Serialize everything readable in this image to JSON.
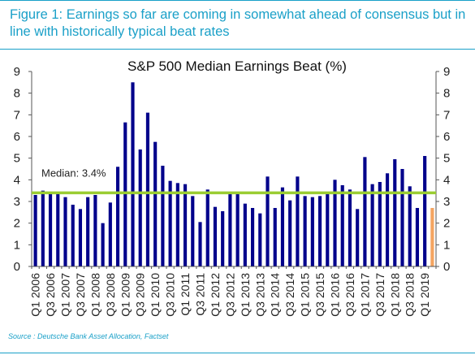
{
  "figure": {
    "caption": "Figure 1: Earnings so far are coming in somewhat ahead of consensus but in line with historically typical beat rates",
    "source": "Source : Deutsche Bank Asset Allocation, Factset"
  },
  "chart_data": {
    "type": "bar",
    "title": "S&P 500 Median Earnings Beat (%)",
    "xlabel": "",
    "ylabel": "",
    "ylim": [
      0,
      9
    ],
    "yticks": [
      0,
      1,
      2,
      3,
      4,
      5,
      6,
      7,
      8,
      9
    ],
    "categories": [
      "Q1 2006",
      "Q2 2006",
      "Q3 2006",
      "Q4 2006",
      "Q1 2007",
      "Q2 2007",
      "Q3 2007",
      "Q4 2007",
      "Q1 2008",
      "Q2 2008",
      "Q3 2008",
      "Q4 2008",
      "Q1 2009",
      "Q2 2009",
      "Q3 2009",
      "Q4 2009",
      "Q1 2010",
      "Q2 2010",
      "Q3 2010",
      "Q4 2010",
      "Q1 2011",
      "Q2 2011",
      "Q3 2011",
      "Q4 2011",
      "Q1 2012",
      "Q2 2012",
      "Q3 2012",
      "Q4 2012",
      "Q1 2013",
      "Q2 2013",
      "Q3 2013",
      "Q4 2013",
      "Q1 2014",
      "Q2 2014",
      "Q3 2014",
      "Q4 2014",
      "Q1 2015",
      "Q2 2015",
      "Q3 2015",
      "Q4 2015",
      "Q1 2016",
      "Q2 2016",
      "Q3 2016",
      "Q4 2016",
      "Q1 2017",
      "Q2 2017",
      "Q3 2017",
      "Q4 2017",
      "Q1 2018",
      "Q2 2018",
      "Q3 2018",
      "Q4 2018",
      "Q1 2019",
      "Q2 2019"
    ],
    "x_tick_labels": [
      "Q1 2006",
      "Q3 2006",
      "Q1 2007",
      "Q3 2007",
      "Q1 2008",
      "Q3 2008",
      "Q1 2009",
      "Q3 2009",
      "Q1 2010",
      "Q3 2010",
      "Q1 2011",
      "Q3 2011",
      "Q1 2012",
      "Q3 2012",
      "Q1 2013",
      "Q3 2013",
      "Q1 2014",
      "Q3 2014",
      "Q1 2015",
      "Q3 2015",
      "Q1 2016",
      "Q3 2016",
      "Q1 2017",
      "Q3 2017",
      "Q1 2018",
      "Q3 2018",
      "Q1 2019"
    ],
    "values": [
      3.3,
      3.5,
      3.45,
      3.4,
      3.2,
      2.85,
      2.65,
      3.2,
      3.3,
      2.0,
      2.95,
      4.6,
      6.65,
      8.5,
      5.4,
      7.1,
      5.75,
      4.65,
      3.95,
      3.85,
      3.8,
      3.25,
      2.05,
      3.55,
      2.75,
      2.55,
      3.45,
      3.45,
      2.9,
      2.7,
      2.45,
      4.15,
      2.7,
      3.65,
      3.05,
      4.15,
      3.25,
      3.2,
      3.25,
      3.4,
      4.0,
      3.75,
      3.55,
      2.65,
      5.05,
      3.8,
      3.9,
      4.3,
      4.95,
      4.5,
      3.7,
      2.7,
      5.1,
      2.7
    ],
    "highlight_last": true,
    "colors": {
      "bar": "#00008B",
      "bar_latest": "#F4A460",
      "median_line": "#9ACD32",
      "text": "#222222"
    },
    "median": {
      "value": 3.4,
      "label": "Median: 3.4%"
    },
    "grid": false,
    "legend": "none",
    "dual_y_axis": true
  }
}
